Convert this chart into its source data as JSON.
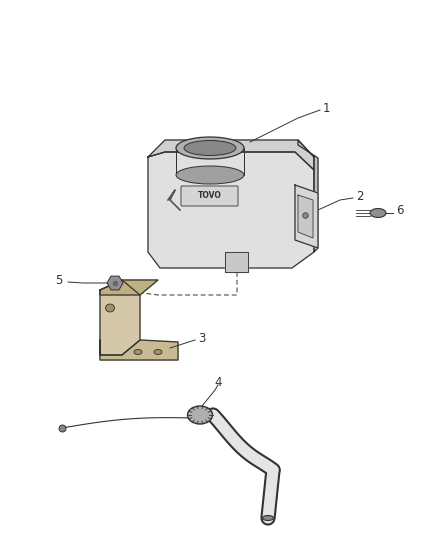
{
  "background_color": "#ffffff",
  "line_color": "#333333",
  "line_width": 0.9,
  "label_fontsize": 8.5,
  "fig_width": 4.38,
  "fig_height": 5.33,
  "dpi": 100,
  "fill_body": "#e8e8e8",
  "fill_top": "#d0d0d0",
  "fill_side": "#c0c0c0",
  "fill_bracket": "#d5c8a8",
  "fill_dark": "#a8a8a8"
}
